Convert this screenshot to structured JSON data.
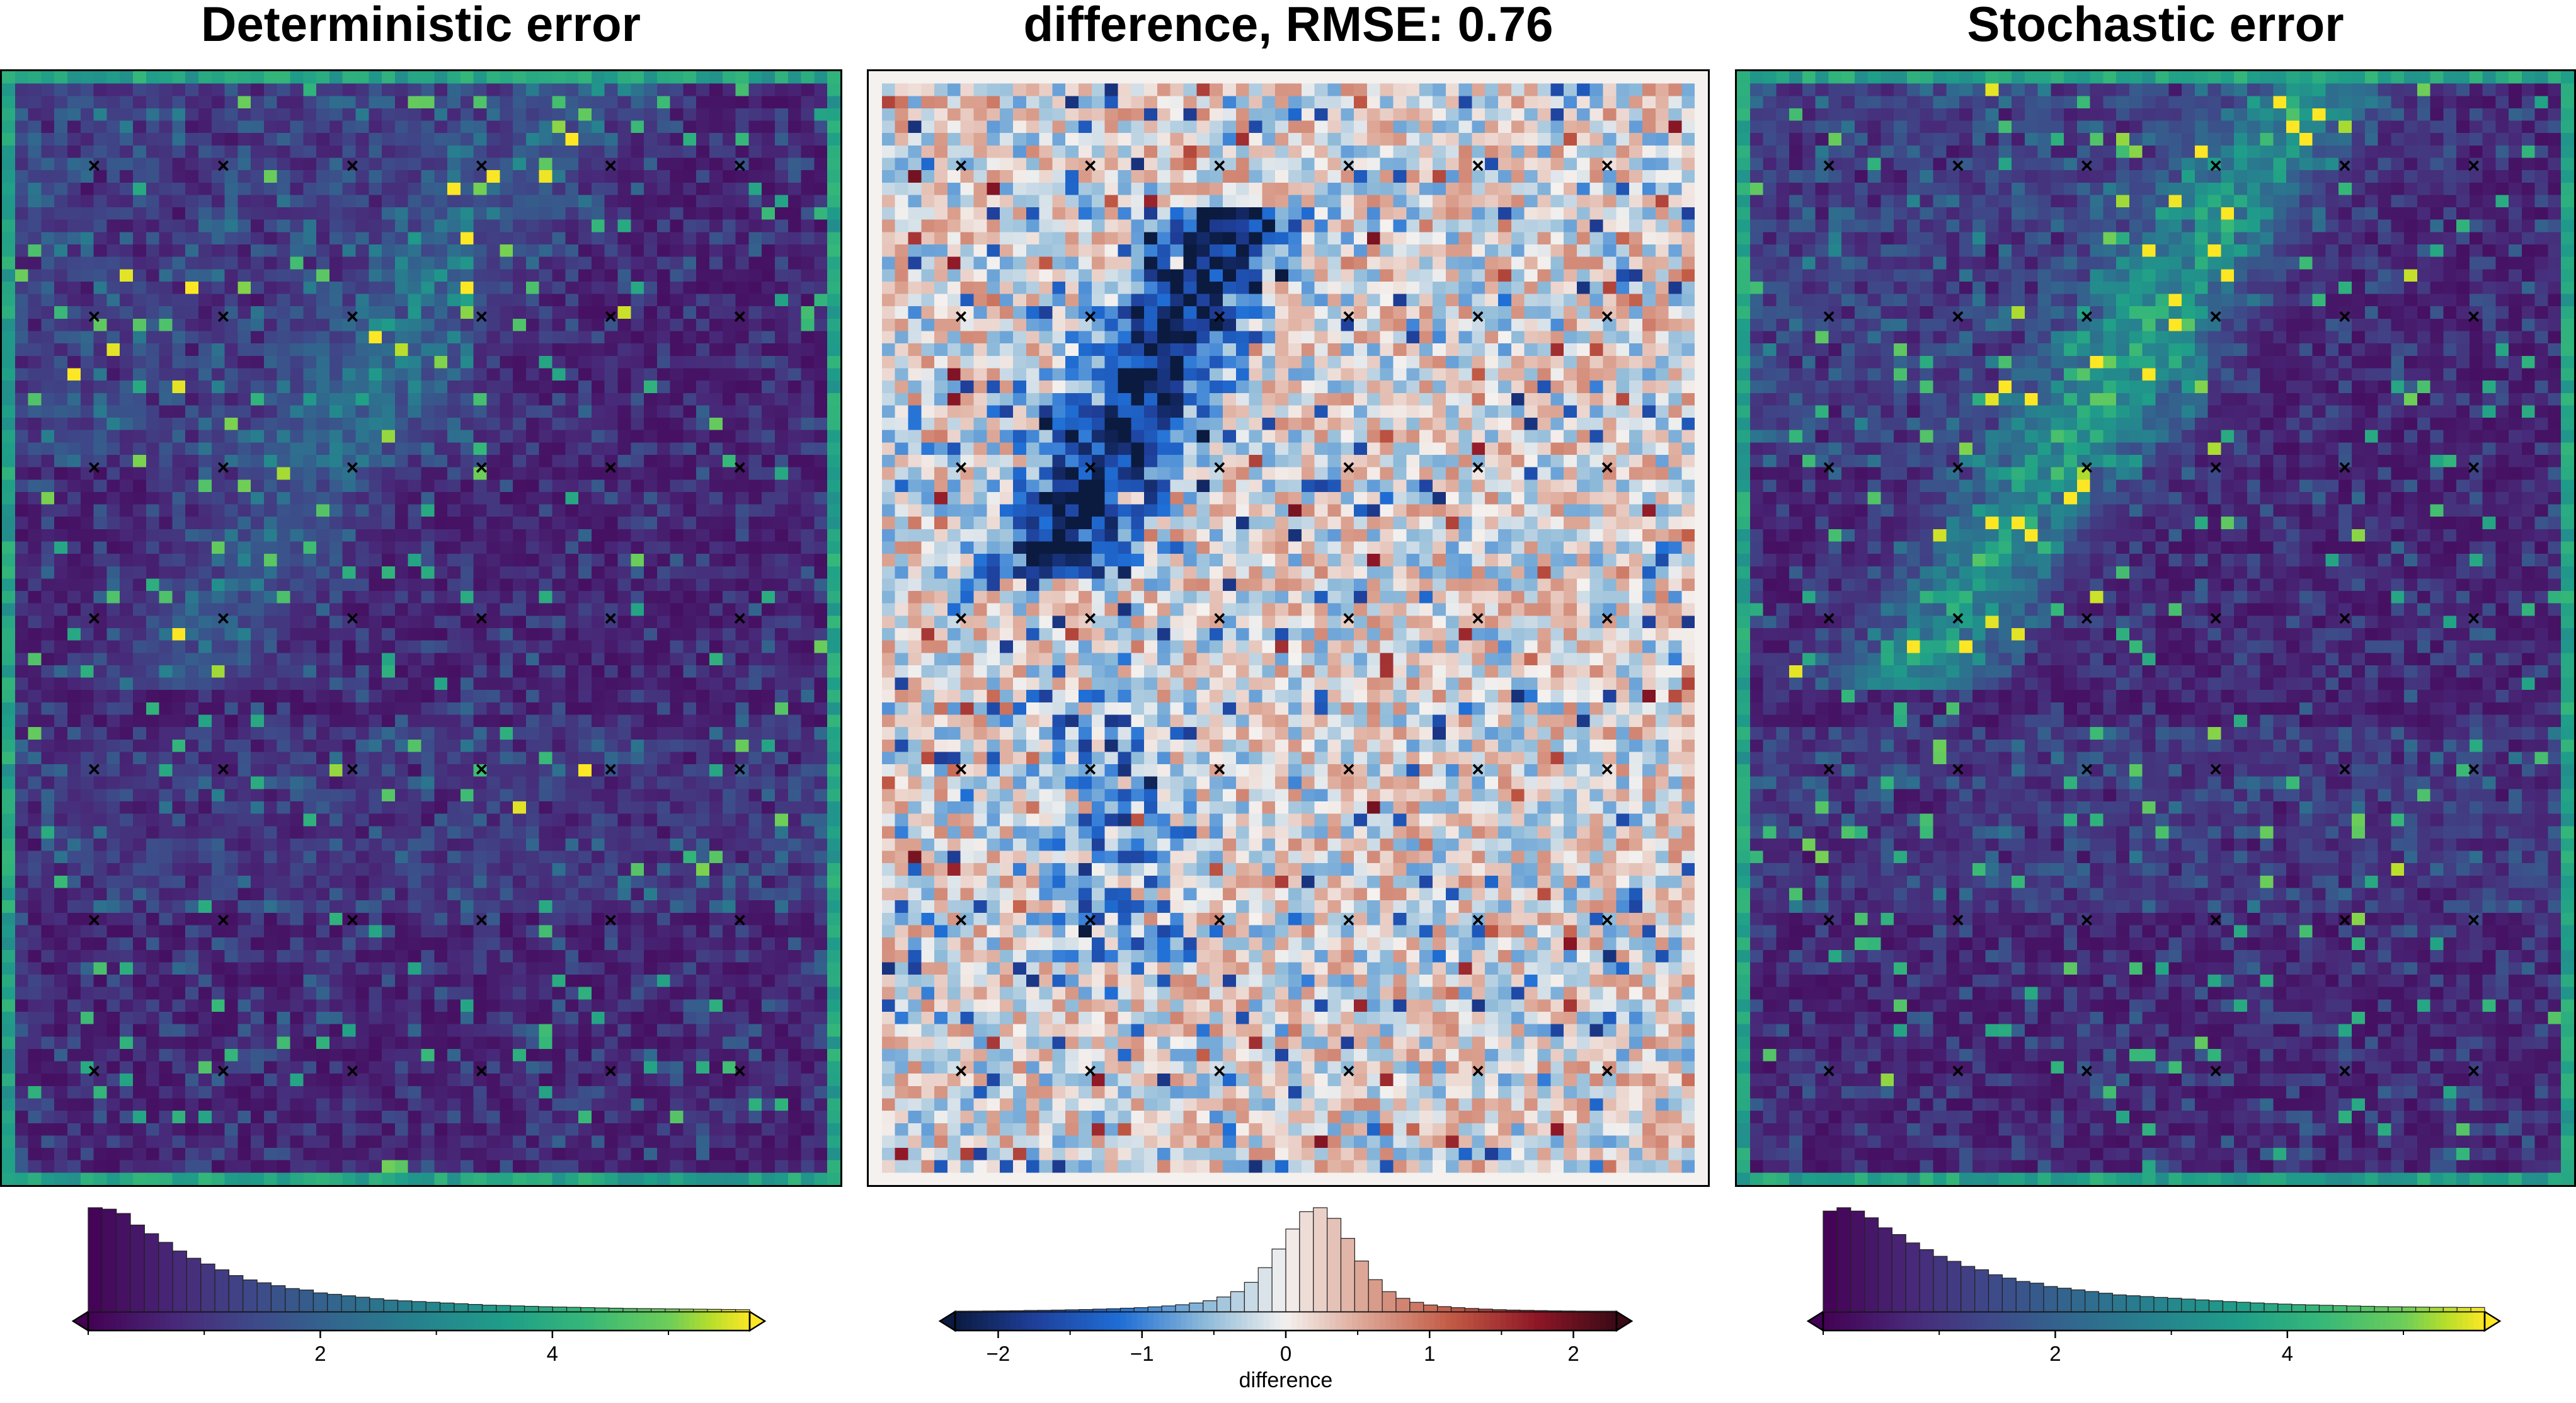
{
  "titles": {
    "left": "Deterministic error",
    "middle": "difference, RMSE: 0.76",
    "right": "Stochastic error"
  },
  "colors": {
    "viridis_low": "#440154",
    "viridis_mid": "#21918c",
    "viridis_high": "#fde725",
    "diverging_low": "#0b1a3f",
    "diverging_mid": "#f7f7f7",
    "diverging_high": "#3a0a16",
    "marker": "#000000",
    "hist_edge": "#000000"
  },
  "chart_data": [
    {
      "type": "heatmap",
      "title": "Deterministic error",
      "colormap": "viridis",
      "grid": [
        64,
        90
      ],
      "marker_grid": [
        6,
        7
      ],
      "marker_symbol": "×",
      "colorbar": {
        "range": [
          0,
          5.7
        ],
        "ticks": [
          2,
          4
        ],
        "tick_labels": [
          "2",
          "4"
        ],
        "extend": "both",
        "histogram_counts": [
          72,
          71,
          68,
          60,
          54,
          48,
          42,
          37,
          33,
          29,
          25,
          22,
          20,
          18,
          16,
          15,
          13,
          12,
          11,
          10,
          9,
          8,
          7.5,
          7,
          6.5,
          6,
          5.5,
          5,
          4.5,
          4.3,
          4,
          3.7,
          3.4,
          3.2,
          3,
          2.8,
          2.6,
          2.4,
          2.2,
          2.1,
          2,
          1.9,
          1.8,
          1.7,
          1.6,
          1.5,
          1.4
        ]
      }
    },
    {
      "type": "heatmap",
      "title": "difference, RMSE: 0.76",
      "colormap": "balance",
      "grid": [
        64,
        90
      ],
      "marker_grid": [
        6,
        7
      ],
      "marker_symbol": "×",
      "colorbar": {
        "range": [
          -2.3,
          2.3
        ],
        "ticks": [
          -2,
          -1,
          0,
          1,
          2
        ],
        "tick_labels": [
          "−2",
          "−1",
          "0",
          "1",
          "2"
        ],
        "label": "difference",
        "extend": "both",
        "histogram_counts": [
          0.3,
          0.4,
          0.5,
          0.6,
          0.7,
          0.9,
          1.0,
          1.2,
          1.4,
          1.6,
          1.9,
          2.2,
          2.6,
          3.0,
          3.6,
          4.3,
          5.2,
          6.5,
          8.2,
          11,
          15,
          22,
          33,
          47,
          62,
          75,
          78,
          70,
          55,
          38,
          24,
          15,
          10,
          7,
          5,
          3.8,
          3,
          2.4,
          1.9,
          1.5,
          1.2,
          1.0,
          0.8,
          0.6,
          0.5,
          0.4,
          0.3,
          0.3
        ]
      }
    },
    {
      "type": "heatmap",
      "title": "Stochastic error",
      "colormap": "viridis",
      "grid": [
        64,
        90
      ],
      "marker_grid": [
        6,
        7
      ],
      "marker_symbol": "×",
      "colorbar": {
        "range": [
          0,
          5.7
        ],
        "ticks": [
          2,
          4
        ],
        "tick_labels": [
          "2",
          "4"
        ],
        "extend": "both",
        "histogram_counts": [
          60,
          62,
          60,
          56,
          50,
          46,
          41,
          37,
          33,
          30,
          27,
          25,
          22,
          20,
          18,
          17,
          15,
          14,
          13,
          12,
          11,
          10,
          9.5,
          9,
          8.5,
          8,
          7.5,
          7,
          6.5,
          6,
          5.6,
          5.2,
          4.8,
          4.5,
          4.2,
          4,
          3.8,
          3.6,
          3.4,
          3.2,
          3,
          2.9,
          2.8,
          2.7,
          2.6,
          2.6,
          2.5,
          2.5
        ]
      }
    }
  ]
}
